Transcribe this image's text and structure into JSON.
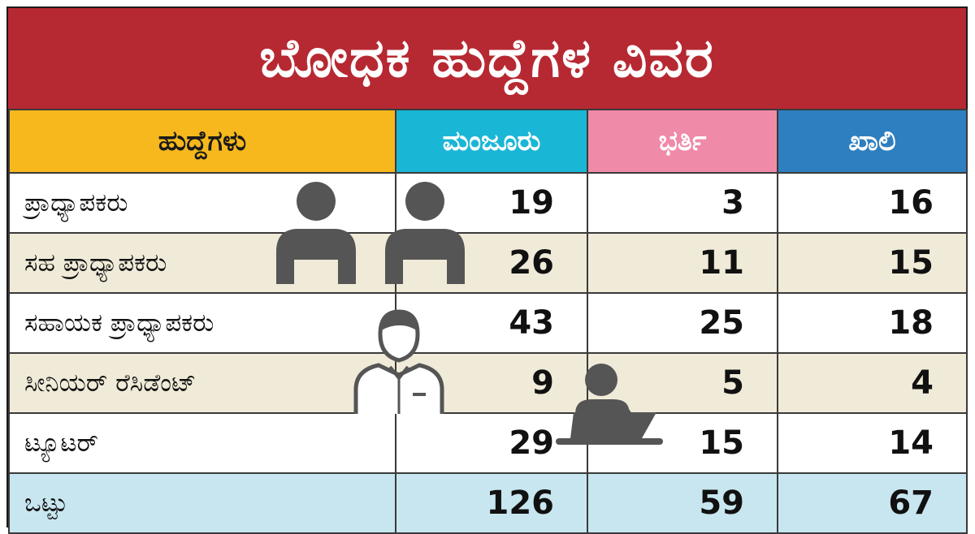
{
  "title": "ಬೋಧಕ ಹುದ್ದೆಗಳ ವಿವರ",
  "columns": [
    "ಹುದ್ದೆಗಳು",
    "ಮಂಜೂರು",
    "ಭರ್ತಿ",
    "ಖಾಲಿ"
  ],
  "rows": [
    {
      "post": "ಪ್ರಾಧ್ಯಾಪಕರು",
      "sanctioned": "19",
      "filled": "3",
      "vacant": "16"
    },
    {
      "post": "ಸಹ ಪ್ರಾಧ್ಯಾಪಕರು",
      "sanctioned": "26",
      "filled": "11",
      "vacant": "15"
    },
    {
      "post": "ಸಹಾಯಕ ಪ್ರಾಧ್ಯಾಪಕರು",
      "sanctioned": "43",
      "filled": "25",
      "vacant": "18"
    },
    {
      "post": "ಸೀನಿಯರ್ ರೆಸಿಡೆಂಟ್",
      "sanctioned": "9",
      "filled": "5",
      "vacant": "4"
    },
    {
      "post": "ಟ್ಯೂಟರ್",
      "sanctioned": "29",
      "filled": "15",
      "vacant": "14"
    }
  ],
  "total": {
    "post": "ಒಟ್ಟು",
    "sanctioned": "126",
    "filled": "59",
    "vacant": "67"
  },
  "colors": {
    "title_bg": "#b72932",
    "header_post": "#f6b81d",
    "header_sanctioned": "#1ab6d6",
    "header_filled": "#f08aa9",
    "header_vacant": "#2e7fbf",
    "row_alt": "#f0ead8",
    "total_row": "#c8e6f0",
    "icon": "#555555"
  },
  "icons": [
    "person-icon",
    "person-icon",
    "employee-icon",
    "laptop-user-icon"
  ]
}
